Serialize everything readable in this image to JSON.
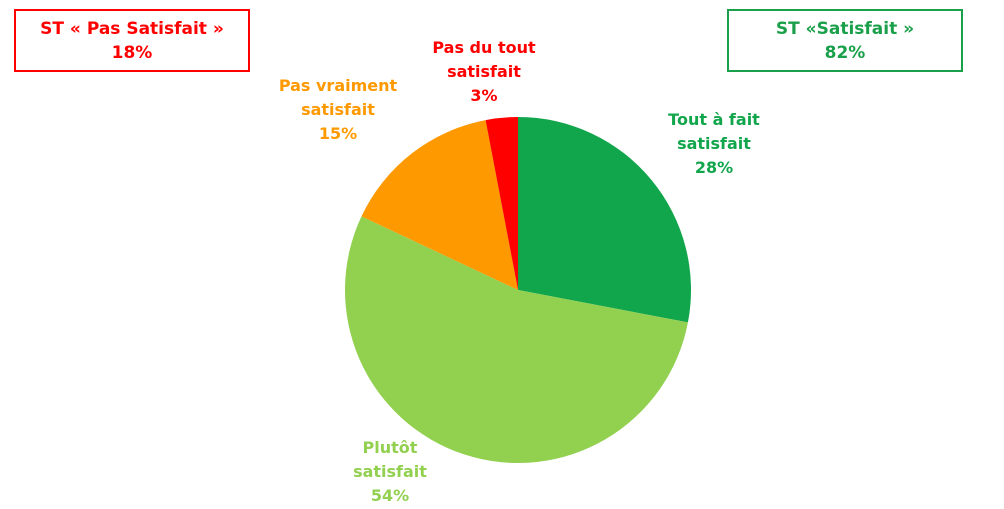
{
  "chart_data": {
    "type": "pie",
    "categories": [
      "Tout à fait satisfait",
      "Plutôt satisfait",
      "Pas vraiment satisfait",
      "Pas du tout satisfait"
    ],
    "values": [
      28,
      54,
      15,
      3
    ],
    "value_labels": [
      "28%",
      "54%",
      "15%",
      "3%"
    ],
    "colors": [
      "#12a64c",
      "#92d050",
      "#ff9900",
      "#ff0000"
    ],
    "subtotals": [
      {
        "label": "ST « Pas Satisfait »",
        "value": "18%",
        "color": "#ff0000"
      },
      {
        "label": "ST «Satisfait »",
        "value": "82%",
        "color": "#1aa04a"
      }
    ]
  }
}
